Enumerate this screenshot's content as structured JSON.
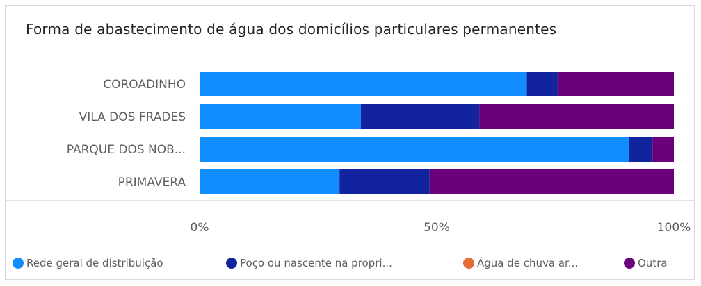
{
  "chart_data": {
    "type": "bar",
    "orientation": "horizontal",
    "stacked": "100%",
    "title": "Forma de abastecimento de água dos domicílios particulares permanentes",
    "categories": [
      "COROADINHO",
      "VILA DOS FRADES",
      "PARQUE DOS NOB...",
      "PRIMAVERA"
    ],
    "series": [
      {
        "name": "Rede geral de distribuição",
        "color": "#118dff",
        "values": [
          69,
          34,
          90.5,
          29.5
        ]
      },
      {
        "name": "Poço ou nascente na propri...",
        "color": "#12239e",
        "values": [
          6.5,
          25,
          5,
          19
        ]
      },
      {
        "name": "Água de chuva ar...",
        "color": "#e66c37",
        "values": [
          0,
          0,
          0,
          0
        ]
      },
      {
        "name": "Outra",
        "color": "#6b007b",
        "values": [
          24.5,
          41,
          4.5,
          51.5
        ]
      }
    ],
    "xlim": [
      0,
      100
    ],
    "xticks": [
      "0%",
      "50%",
      "100%"
    ],
    "xlabel": "",
    "ylabel": "",
    "legend_position": "bottom-left",
    "grid": false
  }
}
